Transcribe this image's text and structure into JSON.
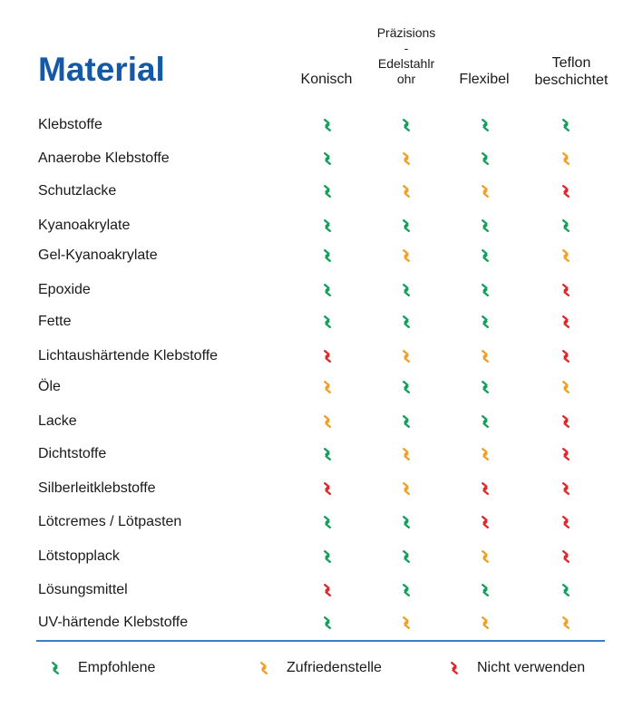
{
  "title": "Material",
  "columns": [
    {
      "label": "Konisch"
    },
    {
      "label": "Präzisions - Edelstahlrohr",
      "lines": [
        "Präzisions",
        "-",
        "Edelstahlr",
        "ohr"
      ]
    },
    {
      "label": "Flexibel"
    },
    {
      "label": "Teflon beschichtet",
      "lines": [
        "Teflon",
        "beschichtet"
      ]
    }
  ],
  "ratings": {
    "recommended": {
      "label": "Empfohlene",
      "color": "#12a05c",
      "icon": "check-chevron-icon"
    },
    "satisfactory": {
      "label": "Zufriedenstelle",
      "color": "#f0a024",
      "icon": "check-chevron-icon"
    },
    "not_recommended": {
      "label": "Nicht verwenden",
      "color": "#e0282c",
      "icon": "check-chevron-icon"
    }
  },
  "legend": [
    "recommended",
    "satisfactory",
    "not_recommended"
  ],
  "rows": [
    {
      "label": "Klebstoffe",
      "values": [
        "recommended",
        "recommended",
        "recommended",
        "recommended"
      ]
    },
    {
      "label": "Anaerobe Klebstoffe",
      "values": [
        "recommended",
        "satisfactory",
        "recommended",
        "satisfactory"
      ]
    },
    {
      "label": "Schutzlacke",
      "values": [
        "recommended",
        "satisfactory",
        "satisfactory",
        "not_recommended"
      ]
    },
    {
      "label": "Kyanoakrylate",
      "values": [
        "recommended",
        "recommended",
        "recommended",
        "recommended"
      ]
    },
    {
      "label": "Gel-Kyanoakrylate",
      "values": [
        "recommended",
        "satisfactory",
        "recommended",
        "satisfactory"
      ]
    },
    {
      "label": "Epoxide",
      "values": [
        "recommended",
        "recommended",
        "recommended",
        "not_recommended"
      ]
    },
    {
      "label": "Fette",
      "values": [
        "recommended",
        "recommended",
        "recommended",
        "not_recommended"
      ]
    },
    {
      "label": "Lichtaushärtende Klebstoffe",
      "values": [
        "not_recommended",
        "satisfactory",
        "satisfactory",
        "not_recommended"
      ]
    },
    {
      "label": "Öle",
      "values": [
        "satisfactory",
        "recommended",
        "recommended",
        "satisfactory"
      ]
    },
    {
      "label": "Lacke",
      "values": [
        "satisfactory",
        "recommended",
        "recommended",
        "not_recommended"
      ]
    },
    {
      "label": "Dichtstoffe",
      "values": [
        "recommended",
        "satisfactory",
        "satisfactory",
        "not_recommended"
      ]
    },
    {
      "label": "Silberleitklebstoffe",
      "values": [
        "not_recommended",
        "satisfactory",
        "not_recommended",
        "not_recommended"
      ]
    },
    {
      "label": "Lötcremes / Lötpasten",
      "values": [
        "recommended",
        "recommended",
        "not_recommended",
        "not_recommended"
      ]
    },
    {
      "label": "Lötstopplack",
      "values": [
        "recommended",
        "recommended",
        "satisfactory",
        "not_recommended"
      ]
    },
    {
      "label": "Lösungsmittel",
      "values": [
        "not_recommended",
        "recommended",
        "recommended",
        "recommended"
      ]
    },
    {
      "label": "UV-härtende Klebstoffe",
      "values": [
        "recommended",
        "satisfactory",
        "satisfactory",
        "satisfactory"
      ]
    }
  ]
}
